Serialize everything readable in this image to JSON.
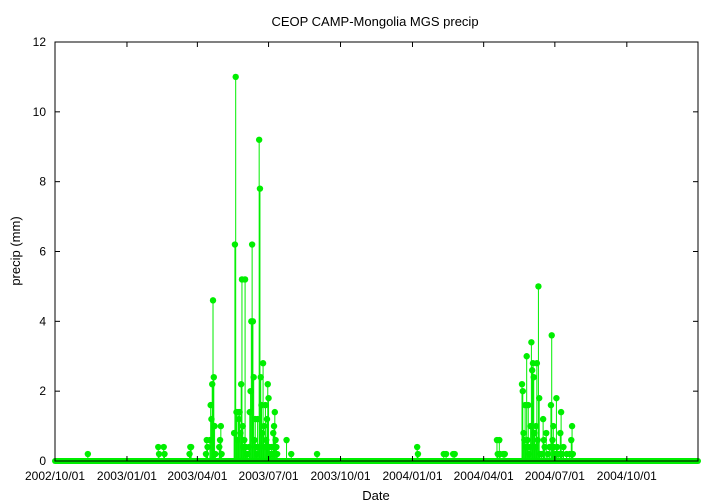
{
  "chart_data": {
    "type": "scatter",
    "title": "CEOP CAMP-Mongolia MGS  precip",
    "xlabel": "Date",
    "ylabel": "precip (mm)",
    "xlim": [
      "2002-10-01",
      "2004-12-31"
    ],
    "ylim": [
      0,
      12
    ],
    "x_tick_labels": [
      "2002/10/01",
      "2003/01/01",
      "2003/04/01",
      "2003/07/01",
      "2003/10/01",
      "2004/01/01",
      "2004/04/01",
      "2004/07/01",
      "2004/10/01"
    ],
    "y_tick_labels": [
      "0",
      "2",
      "4",
      "6",
      "8",
      "10",
      "12"
    ],
    "grid": false,
    "baseline": "daily values of 0 plotted as a continuous row of points along y = 0 from 2002-10-01 to 2004-12-31",
    "series": [
      {
        "color": "#00ee00",
        "marker": "filled circle",
        "connected": "vertical stems to zero",
        "points": [
          [
            "2002-11-12",
            0.2
          ],
          [
            "2003-02-10",
            0.4
          ],
          [
            "2003-02-11",
            0.2
          ],
          [
            "2003-02-17",
            0.4
          ],
          [
            "2003-02-18",
            0.2
          ],
          [
            "2003-03-22",
            0.2
          ],
          [
            "2003-03-23",
            0.4
          ],
          [
            "2003-03-24",
            0.4
          ],
          [
            "2003-04-12",
            0.2
          ],
          [
            "2003-04-13",
            0.6
          ],
          [
            "2003-04-14",
            0.4
          ],
          [
            "2003-04-17",
            0.6
          ],
          [
            "2003-04-18",
            1.6
          ],
          [
            "2003-04-19",
            1.2
          ],
          [
            "2003-04-20",
            2.2
          ],
          [
            "2003-04-21",
            4.6
          ],
          [
            "2003-04-22",
            2.4
          ],
          [
            "2003-04-23",
            1.0
          ],
          [
            "2003-04-24",
            0.2
          ],
          [
            "2003-04-29",
            0.4
          ],
          [
            "2003-04-30",
            0.6
          ],
          [
            "2003-05-01",
            1.0
          ],
          [
            "2003-05-02",
            0.2
          ],
          [
            "2003-05-18",
            0.8
          ],
          [
            "2003-05-19",
            6.2
          ],
          [
            "2003-05-20",
            11.0
          ],
          [
            "2003-05-21",
            1.4
          ],
          [
            "2003-05-22",
            0.6
          ],
          [
            "2003-05-23",
            1.4
          ],
          [
            "2003-05-24",
            1.2
          ],
          [
            "2003-05-25",
            1.4
          ],
          [
            "2003-05-26",
            0.8
          ],
          [
            "2003-05-27",
            2.2
          ],
          [
            "2003-05-28",
            5.2
          ],
          [
            "2003-05-29",
            1.0
          ],
          [
            "2003-05-30",
            0.4
          ],
          [
            "2003-05-31",
            0.6
          ],
          [
            "2003-06-01",
            5.2
          ],
          [
            "2003-06-02",
            0.4
          ],
          [
            "2003-06-03",
            0.2
          ],
          [
            "2003-06-04",
            0.2
          ],
          [
            "2003-06-06",
            0.4
          ],
          [
            "2003-06-07",
            1.4
          ],
          [
            "2003-06-08",
            2.0
          ],
          [
            "2003-06-09",
            4.0
          ],
          [
            "2003-06-10",
            6.2
          ],
          [
            "2003-06-11",
            4.0
          ],
          [
            "2003-06-12",
            2.4
          ],
          [
            "2003-06-13",
            0.6
          ],
          [
            "2003-06-14",
            1.2
          ],
          [
            "2003-06-15",
            0.4
          ],
          [
            "2003-06-16",
            0.2
          ],
          [
            "2003-06-17",
            1.2
          ],
          [
            "2003-06-18",
            0.4
          ],
          [
            "2003-06-19",
            9.2
          ],
          [
            "2003-06-20",
            7.8
          ],
          [
            "2003-06-21",
            2.4
          ],
          [
            "2003-06-22",
            1.6
          ],
          [
            "2003-06-23",
            0.8
          ],
          [
            "2003-06-24",
            2.8
          ],
          [
            "2003-06-25",
            1.0
          ],
          [
            "2003-06-26",
            0.4
          ],
          [
            "2003-06-27",
            1.6
          ],
          [
            "2003-06-28",
            0.6
          ],
          [
            "2003-06-29",
            1.2
          ],
          [
            "2003-06-30",
            2.2
          ],
          [
            "2003-07-01",
            1.8
          ],
          [
            "2003-07-02",
            0.4
          ],
          [
            "2003-07-03",
            0.2
          ],
          [
            "2003-07-04",
            0.2
          ],
          [
            "2003-07-05",
            0.4
          ],
          [
            "2003-07-06",
            0.2
          ],
          [
            "2003-07-07",
            0.8
          ],
          [
            "2003-07-08",
            1.0
          ],
          [
            "2003-07-09",
            1.4
          ],
          [
            "2003-07-10",
            0.6
          ],
          [
            "2003-07-11",
            0.4
          ],
          [
            "2003-07-12",
            0.2
          ],
          [
            "2003-07-24",
            0.6
          ],
          [
            "2003-07-30",
            0.2
          ],
          [
            "2003-09-01",
            0.2
          ],
          [
            "2004-01-07",
            0.4
          ],
          [
            "2004-01-08",
            0.2
          ],
          [
            "2004-02-10",
            0.2
          ],
          [
            "2004-02-13",
            0.2
          ],
          [
            "2004-02-22",
            0.2
          ],
          [
            "2004-02-24",
            0.2
          ],
          [
            "2004-04-18",
            0.6
          ],
          [
            "2004-04-19",
            0.2
          ],
          [
            "2004-04-21",
            0.6
          ],
          [
            "2004-04-22",
            0.2
          ],
          [
            "2004-04-26",
            0.2
          ],
          [
            "2004-04-28",
            0.2
          ],
          [
            "2004-05-20",
            2.2
          ],
          [
            "2004-05-21",
            2.0
          ],
          [
            "2004-05-22",
            0.8
          ],
          [
            "2004-05-23",
            0.6
          ],
          [
            "2004-05-24",
            1.6
          ],
          [
            "2004-05-25",
            0.4
          ],
          [
            "2004-05-26",
            3.0
          ],
          [
            "2004-05-27",
            0.6
          ],
          [
            "2004-05-28",
            1.6
          ],
          [
            "2004-05-29",
            0.2
          ],
          [
            "2004-05-30",
            0.4
          ],
          [
            "2004-05-31",
            1.0
          ],
          [
            "2004-06-01",
            3.4
          ],
          [
            "2004-06-02",
            2.6
          ],
          [
            "2004-06-03",
            2.8
          ],
          [
            "2004-06-04",
            2.4
          ],
          [
            "2004-06-05",
            0.8
          ],
          [
            "2004-06-06",
            0.4
          ],
          [
            "2004-06-07",
            1.0
          ],
          [
            "2004-06-08",
            2.8
          ],
          [
            "2004-06-09",
            0.6
          ],
          [
            "2004-06-10",
            5.0
          ],
          [
            "2004-06-11",
            1.8
          ],
          [
            "2004-06-12",
            0.2
          ],
          [
            "2004-06-14",
            0.2
          ],
          [
            "2004-06-16",
            1.2
          ],
          [
            "2004-06-17",
            0.6
          ],
          [
            "2004-06-18",
            0.4
          ],
          [
            "2004-06-20",
            0.8
          ],
          [
            "2004-06-22",
            0.2
          ],
          [
            "2004-06-24",
            0.4
          ],
          [
            "2004-06-26",
            1.6
          ],
          [
            "2004-06-27",
            3.6
          ],
          [
            "2004-06-28",
            0.6
          ],
          [
            "2004-06-29",
            1.0
          ],
          [
            "2004-06-30",
            0.4
          ],
          [
            "2004-07-02",
            0.2
          ],
          [
            "2004-07-03",
            1.8
          ],
          [
            "2004-07-04",
            0.4
          ],
          [
            "2004-07-06",
            0.2
          ],
          [
            "2004-07-08",
            0.8
          ],
          [
            "2004-07-09",
            1.4
          ],
          [
            "2004-07-10",
            0.2
          ],
          [
            "2004-07-12",
            0.4
          ],
          [
            "2004-07-16",
            0.2
          ],
          [
            "2004-07-20",
            0.2
          ],
          [
            "2004-07-22",
            0.6
          ],
          [
            "2004-07-23",
            1.0
          ],
          [
            "2004-07-24",
            0.2
          ]
        ]
      }
    ]
  }
}
